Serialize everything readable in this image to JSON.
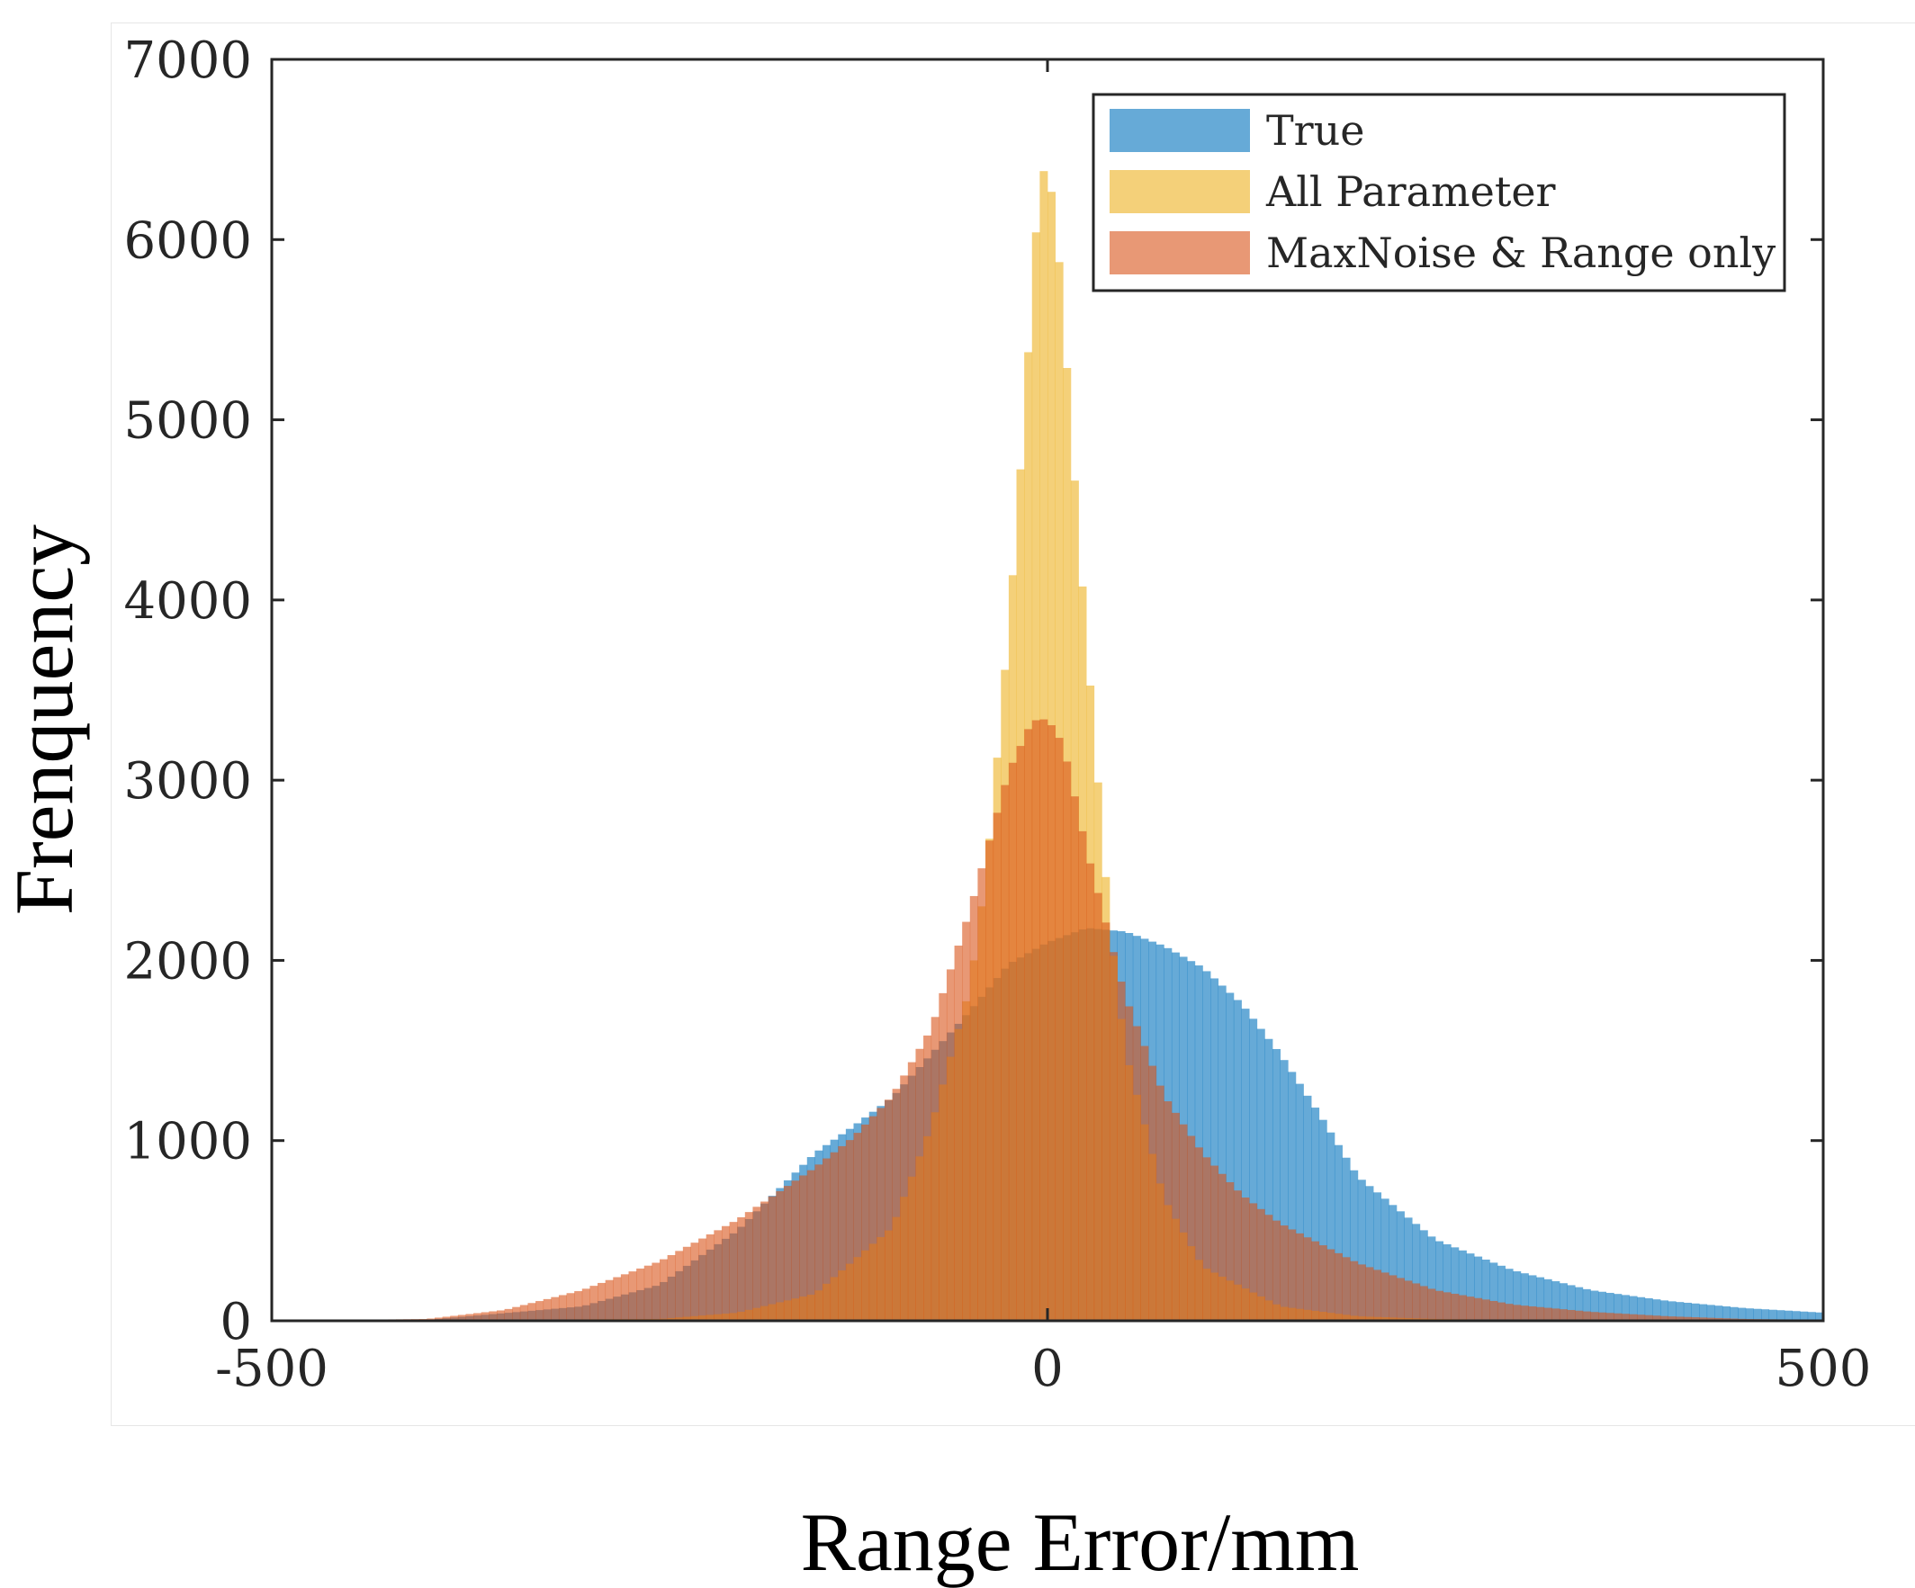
{
  "chart_data": {
    "type": "histogram",
    "xlabel": "Range Error/mm",
    "ylabel": "Frenquency",
    "xlim": [
      -500,
      500
    ],
    "ylim": [
      0,
      7000
    ],
    "xticks": [
      -500,
      0,
      500
    ],
    "xtick_labels": [
      "-500",
      "0",
      "500"
    ],
    "yticks": [
      0,
      1000,
      2000,
      3000,
      4000,
      5000,
      6000,
      7000
    ],
    "ytick_labels": [
      "0",
      "1000",
      "2000",
      "3000",
      "4000",
      "5000",
      "6000",
      "7000"
    ],
    "grid": false,
    "legend_position": "top-right",
    "bin_width": 5,
    "series": [
      {
        "name": "True",
        "color": "#0072BD",
        "opacity": 0.6,
        "x": [
          -500,
          -400,
          -300,
          -250,
          -200,
          -150,
          -125,
          -100,
          -75,
          -50,
          -25,
          0,
          25,
          50,
          75,
          100,
          125,
          150,
          175,
          200,
          250,
          300,
          350,
          400,
          450,
          500
        ],
        "y": [
          0,
          5,
          80,
          200,
          500,
          930,
          1080,
          1240,
          1480,
          1720,
          1980,
          2100,
          2180,
          2160,
          2080,
          1960,
          1760,
          1480,
          1150,
          800,
          450,
          280,
          170,
          110,
          70,
          45
        ]
      },
      {
        "name": "All Parameter",
        "color": "#EDB120",
        "opacity": 0.6,
        "x": [
          -500,
          -250,
          -200,
          -150,
          -100,
          -75,
          -50,
          -40,
          -30,
          -20,
          -10,
          -5,
          0,
          5,
          10,
          20,
          30,
          40,
          50,
          75,
          100,
          150,
          200,
          250,
          300,
          500
        ],
        "y": [
          0,
          10,
          45,
          150,
          520,
          1080,
          1850,
          2450,
          3350,
          4400,
          5700,
          6380,
          6380,
          6150,
          5600,
          4350,
          3250,
          2200,
          1500,
          680,
          300,
          80,
          25,
          10,
          5,
          0
        ]
      },
      {
        "name": "MaxNoise & Range only",
        "color": "#D95319",
        "opacity": 0.6,
        "x": [
          -500,
          -400,
          -350,
          -300,
          -250,
          -200,
          -150,
          -125,
          -100,
          -75,
          -50,
          -25,
          -10,
          0,
          10,
          25,
          50,
          75,
          100,
          125,
          150,
          200,
          250,
          300,
          350,
          400,
          450,
          500
        ],
        "y": [
          0,
          10,
          60,
          170,
          330,
          560,
          850,
          1020,
          1250,
          1620,
          2280,
          3050,
          3330,
          3340,
          3200,
          2620,
          1800,
          1250,
          930,
          700,
          540,
          320,
          170,
          90,
          50,
          25,
          10,
          5
        ]
      }
    ]
  }
}
